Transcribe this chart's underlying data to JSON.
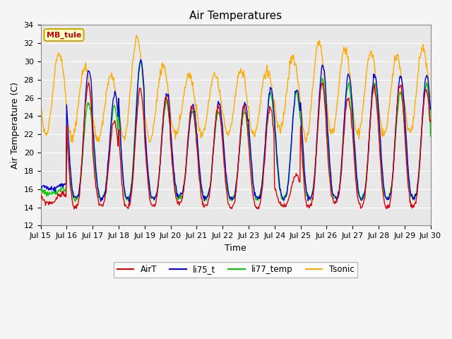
{
  "title": "Air Temperatures",
  "xlabel": "Time",
  "ylabel": "Air Temperature (C)",
  "ylim": [
    12,
    34
  ],
  "yticks": [
    12,
    14,
    16,
    18,
    20,
    22,
    24,
    26,
    28,
    30,
    32,
    34
  ],
  "xlim_hours": [
    0,
    360
  ],
  "xtick_hours": [
    0,
    24,
    48,
    72,
    96,
    120,
    144,
    168,
    192,
    216,
    240,
    264,
    288,
    312,
    336,
    360
  ],
  "xtick_labels": [
    "Jul 15",
    "Jul 16",
    "Jul 17",
    "Jul 18",
    "Jul 19",
    "Jul 20",
    "Jul 21",
    "Jul 22",
    "Jul 23",
    "Jul 24",
    "Jul 25",
    "Jul 26",
    "Jul 27",
    "Jul 28",
    "Jul 29",
    "Jul 30"
  ],
  "colors": {
    "AirT": "#dd0000",
    "li75_t": "#0000dd",
    "li77_temp": "#00cc00",
    "Tsonic": "#ffaa00"
  },
  "legend_labels": [
    "AirT",
    "li75_t",
    "li77_temp",
    "Tsonic"
  ],
  "annotation_text": "MB_tule",
  "annotation_color": "#cc0000",
  "annotation_bg": "#ffffcc",
  "annotation_border": "#ccaa00",
  "plot_bg": "#e8e8e8",
  "fig_bg": "#f5f5f5",
  "grid_color": "#ffffff",
  "title_fontsize": 11,
  "axis_label_fontsize": 9,
  "tick_fontsize": 8,
  "airt_mins": [
    14.5,
    14.0,
    14.2,
    14.0,
    14.2,
    14.5,
    14.2,
    14.0,
    14.0,
    14.2,
    14.0,
    14.5,
    14.2,
    14.0,
    14.2,
    14.5
  ],
  "airt_maxs": [
    15.5,
    27.5,
    23.5,
    27.0,
    26.0,
    25.0,
    25.0,
    25.0,
    25.0,
    17.5,
    27.5,
    26.0,
    27.0,
    27.5,
    27.0,
    28.0
  ],
  "li75_mins": [
    16.0,
    15.0,
    15.0,
    15.0,
    15.0,
    15.2,
    15.0,
    15.0,
    15.0,
    15.0,
    15.0,
    15.0,
    15.0,
    15.0,
    15.0,
    15.0
  ],
  "li75_maxs": [
    16.5,
    29.0,
    26.5,
    30.0,
    26.5,
    25.2,
    25.5,
    25.5,
    27.0,
    27.0,
    29.5,
    28.5,
    28.5,
    28.5,
    28.5,
    28.5
  ],
  "li77_mins": [
    15.5,
    15.0,
    15.0,
    15.0,
    15.0,
    15.0,
    15.0,
    15.0,
    15.0,
    15.0,
    15.0,
    15.0,
    15.0,
    15.0,
    15.0,
    15.5
  ],
  "li77_maxs": [
    16.0,
    25.5,
    25.0,
    30.0,
    25.5,
    24.5,
    24.5,
    24.5,
    26.5,
    26.5,
    28.0,
    27.5,
    27.5,
    26.5,
    27.5,
    25.0
  ],
  "tsonic_mins": [
    22.0,
    21.5,
    21.5,
    21.5,
    21.5,
    22.0,
    22.0,
    22.0,
    22.0,
    22.5,
    21.5,
    22.0,
    22.0,
    22.0,
    22.0,
    22.5
  ],
  "tsonic_maxs": [
    31.0,
    29.5,
    28.5,
    32.5,
    29.5,
    28.5,
    28.5,
    29.0,
    29.0,
    30.5,
    32.0,
    31.5,
    31.0,
    30.5,
    31.5,
    31.5
  ],
  "linewidth": 1.0
}
